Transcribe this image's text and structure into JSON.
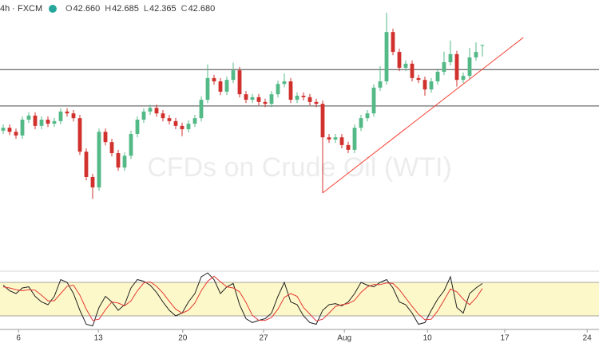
{
  "header": {
    "interval": "4h",
    "source": "FXCM",
    "fields": [
      {
        "key": "O",
        "value": "42.660"
      },
      {
        "key": "H",
        "value": "42.685"
      },
      {
        "key": "L",
        "value": "42.365"
      },
      {
        "key": "C",
        "value": "42.680"
      }
    ]
  },
  "chart_data": [
    {
      "type": "candlestick",
      "watermark": "CFDs on Crude Oil (WTI)",
      "up_color": "#53b987",
      "down_color": "#d0312d",
      "x": [
        0,
        1,
        2,
        3,
        4,
        5,
        6,
        7,
        8,
        9,
        10,
        11,
        12,
        13,
        14,
        15,
        16,
        17,
        18,
        19,
        20,
        21,
        22,
        23,
        24,
        25,
        26,
        27,
        28,
        29,
        30,
        31,
        32,
        33,
        34,
        35,
        36,
        37,
        38,
        39,
        40,
        41,
        42,
        43,
        44,
        45,
        46,
        47,
        48,
        49,
        50,
        51,
        52,
        53,
        54,
        55,
        56,
        57,
        58,
        59,
        60,
        61,
        62,
        63,
        64,
        65,
        66,
        67,
        68,
        69,
        70,
        71,
        72,
        73,
        74,
        75
      ],
      "open": [
        40.35,
        40.43,
        40.32,
        40.22,
        40.65,
        40.76,
        40.48,
        40.65,
        40.54,
        40.61,
        40.87,
        40.82,
        40.69,
        39.78,
        39.09,
        38.81,
        40.32,
        40.04,
        39.74,
        39.35,
        39.67,
        40.26,
        40.65,
        40.87,
        40.97,
        40.82,
        40.69,
        40.61,
        40.48,
        40.39,
        40.54,
        40.69,
        41.19,
        41.78,
        41.69,
        41.41,
        41.73,
        41.99,
        41.34,
        41.19,
        41.26,
        41.13,
        41.08,
        41.34,
        41.62,
        41.69,
        41.19,
        41.3,
        41.26,
        41.13,
        41.08,
        40.17,
        40.11,
        40.17,
        39.96,
        39.83,
        40.43,
        40.69,
        40.82,
        41.52,
        41.69,
        43.03,
        42.49,
        42.06,
        42.17,
        41.78,
        41.73,
        41.47,
        41.69,
        41.95,
        42.21,
        42.43,
        41.73,
        41.84,
        42.34,
        42.66
      ],
      "high": [
        40.52,
        40.52,
        40.41,
        40.74,
        40.85,
        40.85,
        40.74,
        40.74,
        40.7,
        40.96,
        40.96,
        40.91,
        40.78,
        39.87,
        39.18,
        40.41,
        40.41,
        40.13,
        39.83,
        39.76,
        40.35,
        40.74,
        40.96,
        41.06,
        41.06,
        40.91,
        40.78,
        40.7,
        40.57,
        40.63,
        40.78,
        41.28,
        42.15,
        41.87,
        41.78,
        41.82,
        42.2,
        42.08,
        41.43,
        41.35,
        41.35,
        41.22,
        41.43,
        41.71,
        41.9,
        41.78,
        41.39,
        41.39,
        41.35,
        41.22,
        41.17,
        40.26,
        40.26,
        40.26,
        40.05,
        40.52,
        40.78,
        40.91,
        41.61,
        42.1,
        43.55,
        43.12,
        42.58,
        42.26,
        42.26,
        41.87,
        41.82,
        41.78,
        42.04,
        42.5,
        42.8,
        42.52,
        41.93,
        42.6,
        42.75,
        42.685
      ],
      "low": [
        40.26,
        40.23,
        40.13,
        40.13,
        40.56,
        40.39,
        40.39,
        40.45,
        40.45,
        40.52,
        40.73,
        40.6,
        39.69,
        39.0,
        38.5,
        38.72,
        39.95,
        39.65,
        39.26,
        39.26,
        39.58,
        40.17,
        40.56,
        40.78,
        40.73,
        40.6,
        40.52,
        40.39,
        40.2,
        40.3,
        40.45,
        40.6,
        41.1,
        41.6,
        41.32,
        41.32,
        41.64,
        41.25,
        41.1,
        41.1,
        41.04,
        40.99,
        40.99,
        41.25,
        41.53,
        41.1,
        41.1,
        41.17,
        41.04,
        40.99,
        38.66,
        40.02,
        40.02,
        39.87,
        39.74,
        39.74,
        40.34,
        40.6,
        40.73,
        41.43,
        41.6,
        42.4,
        41.97,
        41.97,
        41.69,
        41.64,
        41.3,
        41.38,
        41.6,
        41.86,
        42.12,
        41.55,
        41.64,
        41.75,
        42.25,
        42.365
      ],
      "close": [
        40.43,
        40.32,
        40.22,
        40.65,
        40.76,
        40.48,
        40.65,
        40.54,
        40.61,
        40.87,
        40.82,
        40.69,
        39.78,
        39.09,
        38.81,
        40.32,
        40.04,
        39.74,
        39.35,
        39.67,
        40.26,
        40.65,
        40.87,
        40.97,
        40.82,
        40.69,
        40.61,
        40.48,
        40.39,
        40.54,
        40.69,
        41.19,
        41.78,
        41.69,
        41.41,
        41.73,
        41.99,
        41.34,
        41.19,
        41.26,
        41.13,
        41.08,
        41.34,
        41.62,
        41.69,
        41.19,
        41.3,
        41.26,
        41.13,
        41.08,
        40.17,
        40.11,
        40.17,
        39.96,
        39.83,
        40.43,
        40.69,
        40.82,
        41.52,
        41.69,
        43.03,
        42.49,
        42.06,
        42.17,
        41.78,
        41.73,
        41.47,
        41.69,
        41.95,
        42.21,
        42.43,
        41.73,
        41.84,
        42.34,
        42.49,
        42.68
      ],
      "hlines": [
        42.01,
        41.02
      ],
      "hline_color": "#444444",
      "trendline": {
        "x": [
          50,
          81.4
        ],
        "y": [
          38.66,
          42.88
        ],
        "color": "#f44336"
      },
      "xlim": [
        -0.5,
        93.25
      ],
      "ylim": [
        37.4,
        43.9
      ],
      "xticks": [
        {
          "value": 2.4,
          "label": "6"
        },
        {
          "value": 14.9,
          "label": "13"
        },
        {
          "value": 28.1,
          "label": "20"
        },
        {
          "value": 40.75,
          "label": "27"
        },
        {
          "value": 53.4,
          "label": "Aug"
        },
        {
          "value": 66.4,
          "label": "10"
        },
        {
          "value": 78.5,
          "label": "17"
        },
        {
          "value": 91.4,
          "label": "24"
        }
      ]
    },
    {
      "type": "line",
      "ylim": [
        0,
        100
      ],
      "band": [
        20,
        80
      ],
      "band_color": "#fdf8c9",
      "series": [
        {
          "color": "#222222",
          "values": [
            75,
            65,
            60,
            70,
            72,
            55,
            45,
            40,
            55,
            85,
            80,
            60,
            30,
            5,
            2,
            35,
            55,
            45,
            30,
            40,
            70,
            85,
            82,
            75,
            62,
            45,
            30,
            20,
            25,
            45,
            60,
            90,
            97,
            85,
            60,
            72,
            78,
            40,
            15,
            8,
            12,
            15,
            25,
            55,
            80,
            45,
            40,
            20,
            8,
            5,
            30,
            40,
            42,
            38,
            45,
            60,
            80,
            75,
            72,
            80,
            85,
            70,
            45,
            40,
            25,
            5,
            8,
            30,
            50,
            65,
            90,
            35,
            25,
            60,
            70,
            78
          ]
        },
        {
          "color": "#e53935",
          "values": [
            72,
            70,
            67,
            65,
            67,
            66,
            57,
            47,
            47,
            60,
            73,
            75,
            57,
            32,
            12,
            14,
            31,
            45,
            43,
            38,
            47,
            65,
            79,
            81,
            73,
            61,
            46,
            32,
            25,
            30,
            43,
            65,
            82,
            91,
            81,
            72,
            70,
            63,
            44,
            21,
            12,
            12,
            17,
            32,
            53,
            60,
            55,
            35,
            23,
            11,
            14,
            25,
            37,
            40,
            42,
            48,
            62,
            72,
            76,
            76,
            79,
            78,
            67,
            52,
            37,
            23,
            13,
            14,
            29,
            48,
            68,
            63,
            50,
            40,
            52,
            69
          ]
        }
      ]
    }
  ]
}
